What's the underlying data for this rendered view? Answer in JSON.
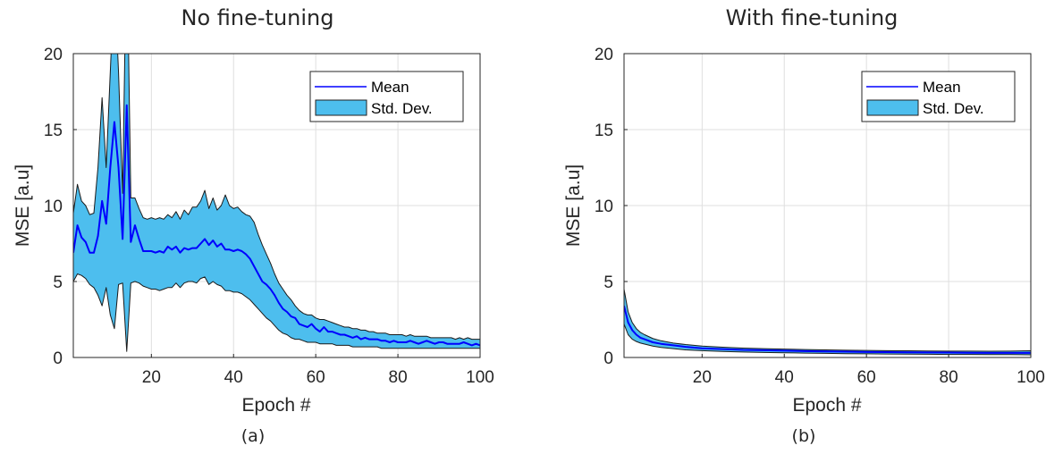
{
  "colors": {
    "mean": "#0000ff",
    "band": "#4dbeee",
    "grid": "#dfdfdf",
    "axis": "#262626"
  },
  "chart_data": [
    {
      "type": "area",
      "title": "No fine-tuning",
      "caption": "(a)",
      "xlabel": "Epoch #",
      "ylabel": "MSE [a.u]",
      "xlim": [
        1,
        100
      ],
      "ylim": [
        0,
        20
      ],
      "xticks": [
        20,
        40,
        60,
        80,
        100
      ],
      "yticks": [
        0,
        5,
        10,
        15,
        20
      ],
      "grid": true,
      "legend_position": "top-right",
      "legend": [
        "Mean",
        "Std. Dev."
      ],
      "x": [
        1,
        2,
        3,
        4,
        5,
        6,
        7,
        8,
        9,
        10,
        11,
        12,
        13,
        14,
        15,
        16,
        17,
        18,
        19,
        20,
        21,
        22,
        23,
        24,
        25,
        26,
        27,
        28,
        29,
        30,
        31,
        32,
        33,
        34,
        35,
        36,
        37,
        38,
        39,
        40,
        41,
        42,
        43,
        44,
        45,
        46,
        47,
        48,
        49,
        50,
        51,
        52,
        53,
        54,
        55,
        56,
        57,
        58,
        59,
        60,
        61,
        62,
        63,
        64,
        65,
        66,
        67,
        68,
        69,
        70,
        71,
        72,
        73,
        74,
        75,
        76,
        77,
        78,
        79,
        80,
        81,
        82,
        83,
        84,
        85,
        86,
        87,
        88,
        89,
        90,
        91,
        92,
        93,
        94,
        95,
        96,
        97,
        98,
        99,
        100
      ],
      "series": [
        {
          "name": "Mean",
          "values": [
            6.9,
            8.7,
            7.9,
            7.6,
            6.9,
            6.9,
            8.0,
            10.3,
            8.8,
            12.5,
            15.5,
            12.5,
            7.8,
            16.6,
            7.6,
            8.7,
            7.8,
            7.0,
            7.0,
            7.0,
            6.9,
            7.0,
            6.9,
            7.3,
            7.1,
            7.3,
            6.9,
            7.2,
            7.1,
            7.2,
            7.2,
            7.5,
            7.8,
            7.4,
            7.7,
            7.3,
            7.5,
            7.1,
            7.1,
            7.0,
            7.1,
            7.0,
            6.8,
            6.5,
            6.0,
            5.5,
            5.0,
            4.8,
            4.5,
            4.1,
            3.6,
            3.2,
            3.0,
            2.7,
            2.6,
            2.2,
            2.1,
            2.0,
            2.2,
            1.9,
            1.7,
            2.0,
            1.7,
            1.7,
            1.6,
            1.5,
            1.5,
            1.4,
            1.3,
            1.4,
            1.2,
            1.3,
            1.2,
            1.2,
            1.2,
            1.1,
            1.1,
            1.0,
            1.1,
            1.0,
            1.0,
            1.0,
            1.1,
            1.0,
            0.9,
            1.0,
            1.1,
            1.0,
            0.9,
            1.0,
            1.0,
            0.9,
            0.9,
            0.9,
            0.9,
            1.0,
            0.9,
            0.8,
            0.9,
            0.8
          ]
        },
        {
          "name": "Std. Dev.",
          "upper": [
            9.5,
            11.4,
            10.3,
            10.0,
            9.4,
            9.5,
            12.5,
            17.1,
            12.5,
            18.8,
            25.0,
            18.8,
            10.8,
            28.0,
            10.5,
            10.5,
            9.8,
            9.2,
            9.1,
            9.2,
            9.1,
            9.2,
            9.1,
            9.4,
            9.2,
            9.6,
            9.1,
            9.7,
            9.4,
            9.9,
            9.9,
            10.3,
            11.0,
            9.8,
            10.5,
            9.7,
            10.0,
            10.7,
            10.0,
            9.8,
            9.9,
            9.6,
            9.4,
            9.3,
            8.9,
            8.1,
            7.4,
            6.8,
            6.2,
            5.5,
            4.9,
            4.5,
            4.1,
            3.8,
            3.4,
            3.1,
            2.9,
            2.8,
            2.8,
            2.6,
            2.5,
            2.5,
            2.4,
            2.3,
            2.2,
            2.1,
            2.0,
            2.0,
            1.9,
            1.9,
            1.8,
            1.8,
            1.7,
            1.7,
            1.6,
            1.6,
            1.6,
            1.5,
            1.5,
            1.5,
            1.5,
            1.4,
            1.5,
            1.4,
            1.4,
            1.4,
            1.4,
            1.3,
            1.3,
            1.3,
            1.3,
            1.3,
            1.3,
            1.2,
            1.3,
            1.2,
            1.3,
            1.2,
            1.2,
            1.2
          ],
          "lower": [
            5.0,
            5.5,
            5.4,
            5.2,
            4.8,
            4.6,
            4.1,
            3.4,
            4.6,
            2.8,
            1.9,
            4.8,
            4.9,
            0.4,
            4.9,
            5.0,
            4.9,
            4.7,
            4.6,
            4.5,
            4.5,
            4.4,
            4.5,
            4.6,
            4.6,
            4.9,
            4.6,
            4.9,
            5.0,
            5.0,
            4.9,
            5.2,
            5.3,
            4.8,
            5.0,
            4.8,
            4.7,
            4.4,
            4.4,
            4.3,
            4.3,
            4.2,
            4.0,
            3.8,
            3.5,
            3.2,
            2.9,
            2.6,
            2.4,
            2.1,
            1.8,
            1.6,
            1.5,
            1.3,
            1.2,
            1.2,
            1.1,
            1.0,
            1.0,
            1.0,
            0.9,
            0.9,
            0.9,
            0.9,
            0.8,
            0.8,
            0.8,
            0.8,
            0.7,
            0.7,
            0.7,
            0.7,
            0.7,
            0.7,
            0.7,
            0.6,
            0.6,
            0.6,
            0.6,
            0.6,
            0.6,
            0.6,
            0.6,
            0.6,
            0.6,
            0.6,
            0.6,
            0.6,
            0.6,
            0.6,
            0.6,
            0.6,
            0.6,
            0.6,
            0.6,
            0.6,
            0.6,
            0.6,
            0.6,
            0.6
          ]
        }
      ]
    },
    {
      "type": "area",
      "title": "With fine-tuning",
      "caption": "(b)",
      "xlabel": "Epoch #",
      "ylabel": "MSE [a.u]",
      "xlim": [
        1,
        100
      ],
      "ylim": [
        0,
        20
      ],
      "xticks": [
        20,
        40,
        60,
        80,
        100
      ],
      "yticks": [
        0,
        5,
        10,
        15,
        20
      ],
      "grid": true,
      "legend_position": "top-right",
      "legend": [
        "Mean",
        "Std. Dev."
      ],
      "x": [
        1,
        2,
        3,
        4,
        5,
        6,
        8,
        10,
        13,
        16,
        20,
        25,
        30,
        35,
        40,
        45,
        50,
        55,
        60,
        65,
        70,
        75,
        80,
        85,
        90,
        95,
        100
      ],
      "series": [
        {
          "name": "Mean",
          "values": [
            3.4,
            2.3,
            1.8,
            1.5,
            1.3,
            1.2,
            1.0,
            0.9,
            0.8,
            0.7,
            0.6,
            0.55,
            0.5,
            0.48,
            0.45,
            0.42,
            0.4,
            0.38,
            0.36,
            0.35,
            0.34,
            0.33,
            0.32,
            0.31,
            0.3,
            0.3,
            0.3
          ]
        },
        {
          "name": "Std. Dev.",
          "upper": [
            4.5,
            3.0,
            2.3,
            1.9,
            1.65,
            1.5,
            1.25,
            1.1,
            0.95,
            0.85,
            0.75,
            0.68,
            0.62,
            0.58,
            0.55,
            0.52,
            0.5,
            0.48,
            0.46,
            0.45,
            0.44,
            0.43,
            0.42,
            0.42,
            0.41,
            0.42,
            0.44
          ],
          "lower": [
            2.2,
            1.5,
            1.2,
            1.05,
            0.95,
            0.88,
            0.75,
            0.66,
            0.58,
            0.5,
            0.45,
            0.4,
            0.36,
            0.33,
            0.31,
            0.29,
            0.27,
            0.25,
            0.24,
            0.23,
            0.22,
            0.21,
            0.2,
            0.2,
            0.19,
            0.19,
            0.18
          ]
        }
      ]
    }
  ]
}
